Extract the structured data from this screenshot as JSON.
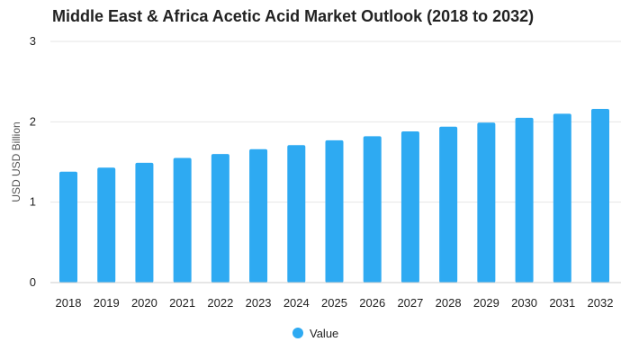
{
  "chart_data": {
    "type": "bar",
    "title": "Middle East & Africa Acetic Acid Market Outlook (2018 to 2032)",
    "xlabel": "",
    "ylabel": "USD USD Billion",
    "ylim": [
      0,
      3
    ],
    "yticks": [
      "0",
      "1",
      "2",
      "3"
    ],
    "grid": true,
    "legend_position": "bottom-center",
    "categories": [
      "2018",
      "2019",
      "2020",
      "2021",
      "2022",
      "2023",
      "2024",
      "2025",
      "2026",
      "2027",
      "2028",
      "2029",
      "2030",
      "2031",
      "2032"
    ],
    "series": [
      {
        "name": "Value",
        "color": "#2eaaf2",
        "values": [
          1.38,
          1.43,
          1.49,
          1.55,
          1.6,
          1.66,
          1.71,
          1.77,
          1.82,
          1.88,
          1.94,
          1.99,
          2.05,
          2.1,
          2.16
        ]
      }
    ]
  }
}
